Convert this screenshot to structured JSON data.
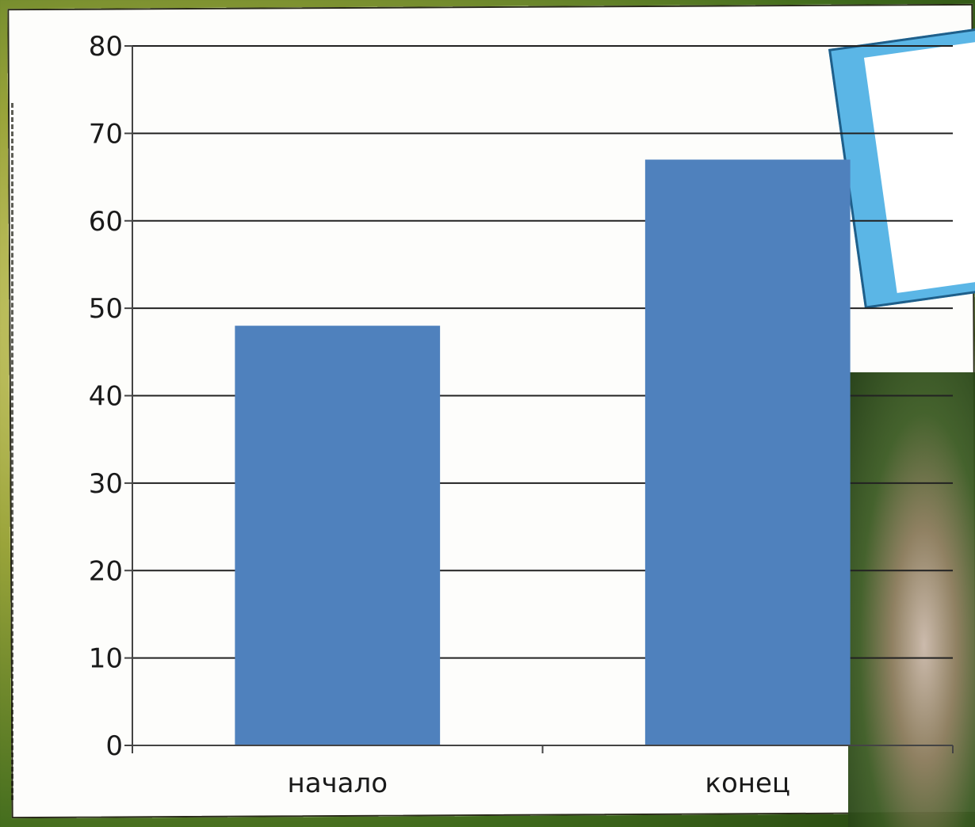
{
  "chart_data": {
    "type": "bar",
    "categories": [
      "начало",
      "конец"
    ],
    "values": [
      48,
      67
    ],
    "ylim": [
      0,
      80
    ],
    "yticks": [
      "0",
      "10",
      "20",
      "30",
      "40",
      "50",
      "60",
      "70",
      "80"
    ],
    "grid": true,
    "bar_color": "#4f81bd",
    "title": "",
    "xlabel": "",
    "ylabel": ""
  }
}
